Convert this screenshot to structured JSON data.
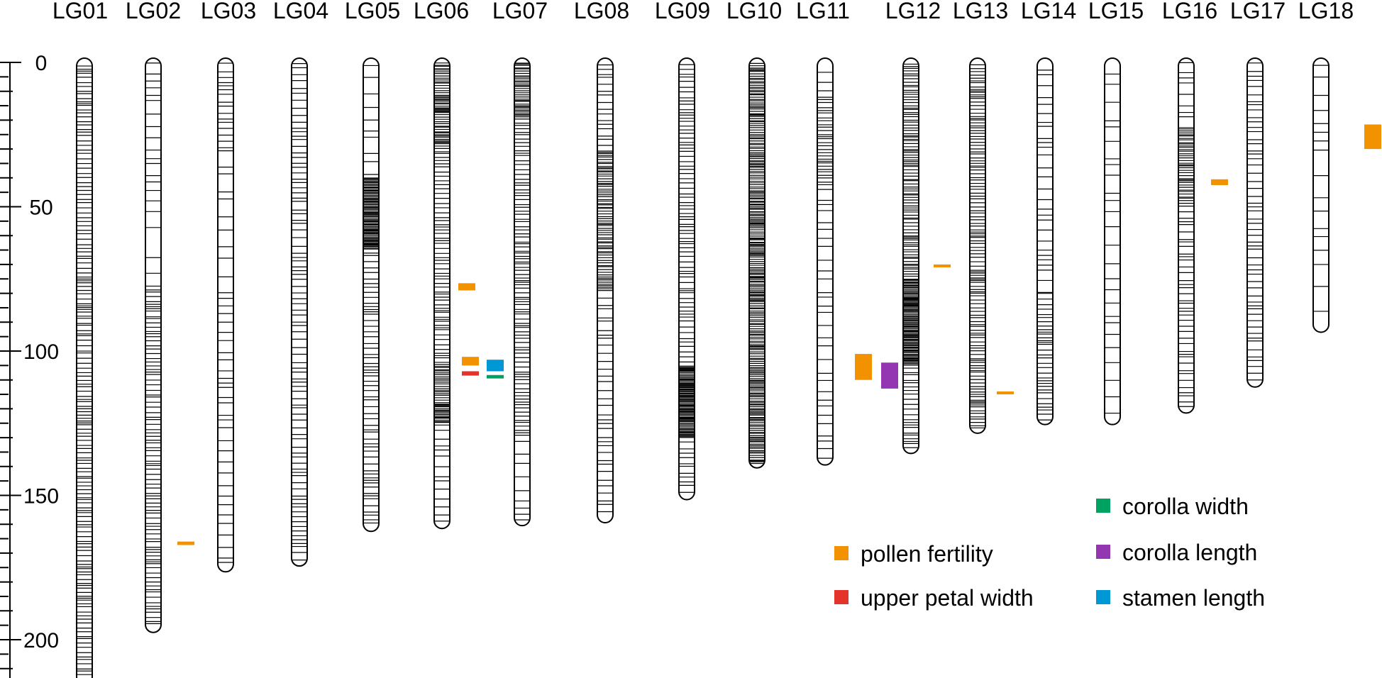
{
  "colors": {
    "outline": "#000000",
    "pollen_fertility": "#F39200",
    "upper_petal_width": "#E3332A",
    "corolla_width": "#00A261",
    "corolla_length": "#9436B1",
    "stamen_length": "#0098D4"
  },
  "axis": {
    "min": 0,
    "max": 215,
    "ticks": [
      "0",
      "50",
      "100",
      "150",
      "200"
    ],
    "tick_values": [
      0,
      50,
      100,
      150,
      200
    ],
    "minor_step": 5
  },
  "linkage_groups": [
    {
      "label": "LG01",
      "length": 214,
      "seed": 11,
      "regions": [
        [
          0,
          214,
          1.25
        ]
      ],
      "dense": [
        [
          120,
          214,
          0.8
        ]
      ]
    },
    {
      "label": "LG02",
      "length": 196,
      "seed": 12,
      "regions": [
        [
          0,
          55,
          3.2
        ],
        [
          55,
          78,
          9
        ],
        [
          78,
          196,
          1.3
        ]
      ],
      "dense": [
        [
          85,
          100,
          0.9
        ]
      ]
    },
    {
      "label": "LG03",
      "length": 175,
      "seed": 13,
      "regions": [
        [
          0,
          30,
          2.0
        ],
        [
          30,
          80,
          4.5
        ],
        [
          80,
          175,
          3.0
        ]
      ],
      "dense": []
    },
    {
      "label": "LG04",
      "length": 173,
      "seed": 14,
      "regions": [
        [
          0,
          173,
          2.0
        ]
      ],
      "dense": []
    },
    {
      "label": "LG05",
      "length": 161,
      "seed": 15,
      "regions": [
        [
          0,
          40,
          4.0
        ],
        [
          40,
          65,
          0.35
        ],
        [
          65,
          161,
          1.6
        ]
      ],
      "dense": []
    },
    {
      "label": "LG06",
      "length": 160,
      "seed": 16,
      "regions": [
        [
          0,
          30,
          0.6
        ],
        [
          30,
          105,
          1.2
        ],
        [
          105,
          125,
          0.6
        ],
        [
          125,
          160,
          2.6
        ]
      ],
      "dense": []
    },
    {
      "label": "LG07",
      "length": 159,
      "seed": 17,
      "regions": [
        [
          0,
          20,
          0.6
        ],
        [
          20,
          130,
          1.2
        ],
        [
          130,
          159,
          4.0
        ]
      ],
      "dense": []
    },
    {
      "label": "LG08",
      "length": 158,
      "seed": 18,
      "regions": [
        [
          0,
          30,
          1.8
        ],
        [
          30,
          80,
          0.7
        ],
        [
          80,
          158,
          2.2
        ]
      ],
      "dense": []
    },
    {
      "label": "LG09",
      "length": 150,
      "seed": 19,
      "regions": [
        [
          0,
          105,
          1.4
        ],
        [
          105,
          130,
          0.35
        ],
        [
          130,
          150,
          1.6
        ]
      ],
      "dense": []
    },
    {
      "label": "LG10",
      "length": 139,
      "seed": 20,
      "regions": [
        [
          0,
          139,
          0.55
        ]
      ],
      "dense": []
    },
    {
      "label": "LG11",
      "length": 138,
      "seed": 21,
      "regions": [
        [
          0,
          12,
          5
        ],
        [
          12,
          45,
          1.2
        ],
        [
          45,
          138,
          3.2
        ]
      ],
      "dense": []
    },
    {
      "label": "LG12",
      "length": 134,
      "seed": 22,
      "regions": [
        [
          0,
          75,
          0.8
        ],
        [
          75,
          105,
          0.35
        ],
        [
          105,
          134,
          1.4
        ]
      ],
      "dense": []
    },
    {
      "label": "LG13",
      "length": 127,
      "seed": 23,
      "regions": [
        [
          0,
          127,
          1.0
        ]
      ],
      "dense": []
    },
    {
      "label": "LG14",
      "length": 124,
      "seed": 24,
      "regions": [
        [
          0,
          80,
          3.0
        ],
        [
          80,
          124,
          1.3
        ]
      ],
      "dense": []
    },
    {
      "label": "LG15",
      "length": 124,
      "seed": 25,
      "regions": [
        [
          0,
          124,
          4.2
        ]
      ],
      "dense": []
    },
    {
      "label": "LG16",
      "length": 120,
      "seed": 26,
      "regions": [
        [
          0,
          22,
          3.0
        ],
        [
          22,
          50,
          0.7
        ],
        [
          50,
          120,
          1.8
        ]
      ],
      "dense": []
    },
    {
      "label": "LG17",
      "length": 111,
      "seed": 27,
      "regions": [
        [
          0,
          111,
          2.0
        ]
      ],
      "dense": []
    },
    {
      "label": "LG18",
      "length": 92,
      "seed": 28,
      "regions": [
        [
          0,
          92,
          6.0
        ]
      ],
      "dense": []
    }
  ],
  "qtls": [
    {
      "lg": "LG02",
      "trait": "pollen_fertility",
      "start": 166,
      "end": 167.2,
      "col": 0
    },
    {
      "lg": "LG06",
      "trait": "pollen_fertility",
      "start": 102,
      "end": 105,
      "col": 0
    },
    {
      "lg": "LG06",
      "trait": "upper_petal_width",
      "start": 107,
      "end": 108.5,
      "col": 0
    },
    {
      "lg": "LG06",
      "trait": "stamen_length",
      "start": 103,
      "end": 107,
      "col": 1
    },
    {
      "lg": "LG06",
      "trait": "corolla_width",
      "start": 108.3,
      "end": 109.5,
      "col": 1
    },
    {
      "lg": "LG07",
      "trait": "pollen_fertility",
      "start": 76.5,
      "end": 79,
      "col": 0
    },
    {
      "lg": "LG11",
      "trait": "pollen_fertility",
      "start": 101,
      "end": 110,
      "col": 0
    },
    {
      "lg": "LG11",
      "trait": "corolla_length",
      "start": 104,
      "end": 113,
      "col": 1
    },
    {
      "lg": "LG12",
      "trait": "pollen_fertility",
      "start": 70,
      "end": 71,
      "col": 0
    },
    {
      "lg": "LG13",
      "trait": "pollen_fertility",
      "start": 114,
      "end": 115,
      "col": 0
    },
    {
      "lg": "LG16",
      "trait": "pollen_fertility",
      "start": 40.5,
      "end": 42.5,
      "col": 0
    },
    {
      "lg": "LG18",
      "trait": "pollen_fertility",
      "start": 21.5,
      "end": 30,
      "col": 0
    }
  ],
  "legend": {
    "left": [
      {
        "trait": "pollen_fertility",
        "label": "pollen fertility"
      },
      {
        "trait": "upper_petal_width",
        "label": "upper petal width"
      }
    ],
    "right": [
      {
        "trait": "corolla_width",
        "label": "corolla width"
      },
      {
        "trait": "corolla_length",
        "label": "corolla length"
      },
      {
        "trait": "stamen_length",
        "label": "stamen length"
      }
    ]
  }
}
